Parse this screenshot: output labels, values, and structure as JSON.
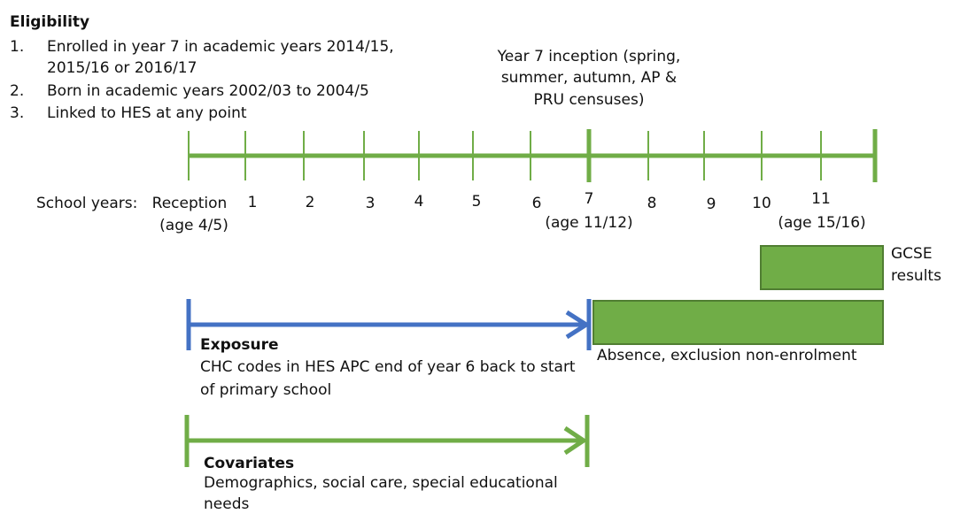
{
  "eligibility": {
    "title": "Eligibility",
    "items": [
      {
        "num": "1.",
        "lines": [
          "Enrolled in year 7 in academic years 2014/15,",
          "2015/16 or 2016/17"
        ]
      },
      {
        "num": "2.",
        "lines": [
          "Born in academic years 2002/03 to 2004/5"
        ]
      },
      {
        "num": "3.",
        "lines": [
          "Linked to HES at any point"
        ]
      }
    ]
  },
  "inception": {
    "lines": [
      "Year 7 inception (spring,",
      "summer, autumn, AP &",
      "PRU censuses)"
    ]
  },
  "school_years": {
    "label": "School years:",
    "years": [
      "Reception",
      "1",
      "2",
      "3",
      "4",
      "5",
      "6",
      "7",
      "8",
      "9",
      "10",
      "11"
    ],
    "ages": {
      "reception": "(age 4/5)",
      "year7": "(age 11/12)",
      "year11": "(age 15/16)"
    }
  },
  "gcse": {
    "lines": [
      "GCSE",
      "results"
    ]
  },
  "outcomes": {
    "label": "Absence, exclusion non-enrolment"
  },
  "exposure": {
    "title": "Exposure",
    "lines": [
      "CHC codes in HES APC end of year 6 back to start",
      "of primary school"
    ]
  },
  "covariates": {
    "title": "Covariates",
    "lines": [
      "Demographics, social care, special educational",
      "needs"
    ]
  },
  "colors": {
    "green": "#70AD47",
    "green_dark": "#507E32",
    "blue": "#4472C4"
  }
}
